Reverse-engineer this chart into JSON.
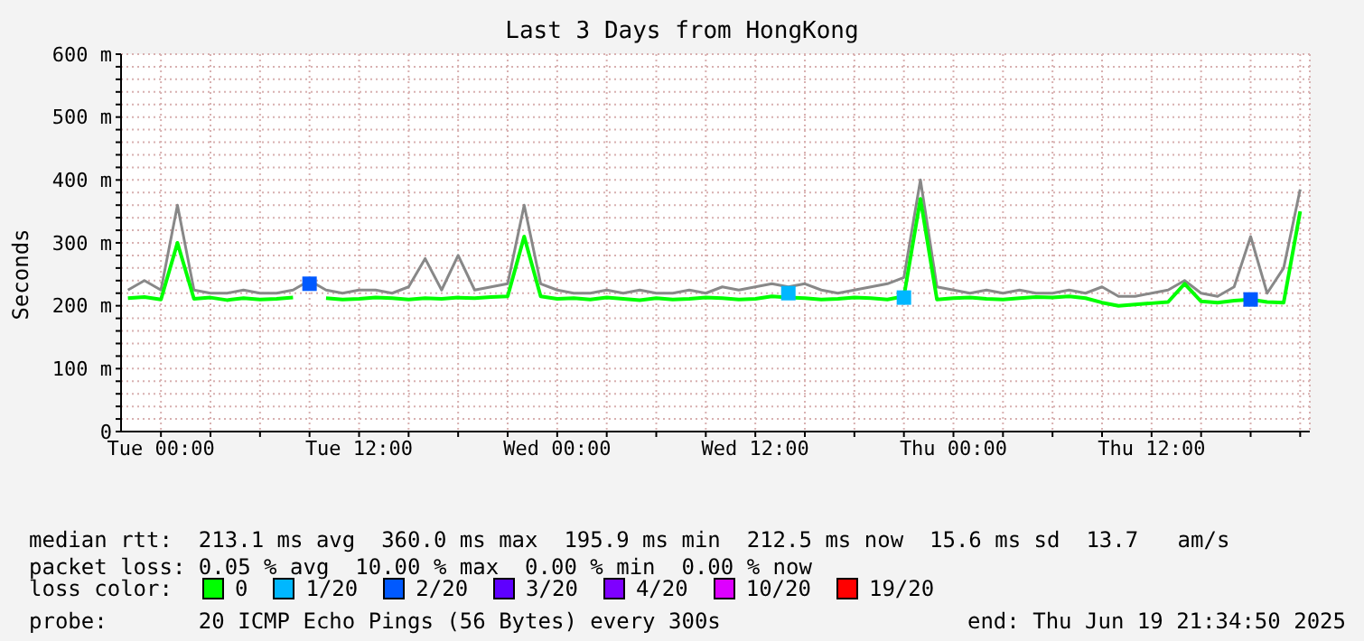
{
  "chart_data": {
    "type": "line",
    "title": "Last 3 Days from HongKong",
    "ylabel": "Seconds",
    "xlim": [
      "2025-06-16T21:35",
      "2025-06-19T21:35"
    ],
    "xticks": [
      {
        "value": "2025-06-17T00:00",
        "label": "Tue 00:00"
      },
      {
        "value": "2025-06-17T03:00",
        "label": null
      },
      {
        "value": "2025-06-17T06:00",
        "label": null
      },
      {
        "value": "2025-06-17T09:00",
        "label": null
      },
      {
        "value": "2025-06-17T12:00",
        "label": "Tue 12:00"
      },
      {
        "value": "2025-06-17T15:00",
        "label": null
      },
      {
        "value": "2025-06-17T18:00",
        "label": null
      },
      {
        "value": "2025-06-17T21:00",
        "label": null
      },
      {
        "value": "2025-06-18T00:00",
        "label": "Wed 00:00"
      },
      {
        "value": "2025-06-18T03:00",
        "label": null
      },
      {
        "value": "2025-06-18T06:00",
        "label": null
      },
      {
        "value": "2025-06-18T09:00",
        "label": null
      },
      {
        "value": "2025-06-18T12:00",
        "label": "Wed 12:00"
      },
      {
        "value": "2025-06-18T15:00",
        "label": null
      },
      {
        "value": "2025-06-18T18:00",
        "label": null
      },
      {
        "value": "2025-06-18T21:00",
        "label": null
      },
      {
        "value": "2025-06-19T00:00",
        "label": "Thu 00:00"
      },
      {
        "value": "2025-06-19T03:00",
        "label": null
      },
      {
        "value": "2025-06-19T06:00",
        "label": null
      },
      {
        "value": "2025-06-19T09:00",
        "label": null
      },
      {
        "value": "2025-06-19T12:00",
        "label": "Thu 12:00"
      },
      {
        "value": "2025-06-19T15:00",
        "label": null
      },
      {
        "value": "2025-06-19T18:00",
        "label": null
      },
      {
        "value": "2025-06-19T21:00",
        "label": null
      }
    ],
    "ylim": [
      0,
      600
    ],
    "yticks": [
      0,
      {
        "value": 20,
        "label": null
      },
      {
        "value": 40,
        "label": null
      },
      {
        "value": 60,
        "label": null
      },
      {
        "value": 80,
        "label": null
      },
      {
        "value": 100,
        "label": "100 m"
      },
      {
        "value": 120,
        "label": null
      },
      {
        "value": 140,
        "label": null
      },
      {
        "value": 160,
        "label": null
      },
      {
        "value": 180,
        "label": null
      },
      {
        "value": 200,
        "label": "200 m"
      },
      {
        "value": 220,
        "label": null
      },
      {
        "value": 240,
        "label": null
      },
      {
        "value": 260,
        "label": null
      },
      {
        "value": 280,
        "label": null
      },
      {
        "value": 300,
        "label": "300 m"
      },
      {
        "value": 320,
        "label": null
      },
      {
        "value": 340,
        "label": null
      },
      {
        "value": 360,
        "label": null
      },
      {
        "value": 380,
        "label": null
      },
      {
        "value": 400,
        "label": "400 m"
      },
      {
        "value": 420,
        "label": null
      },
      {
        "value": 440,
        "label": null
      },
      {
        "value": 460,
        "label": null
      },
      {
        "value": 480,
        "label": null
      },
      {
        "value": 500,
        "label": "500 m"
      },
      {
        "value": 520,
        "label": null
      },
      {
        "value": 540,
        "label": null
      },
      {
        "value": 560,
        "label": null
      },
      {
        "value": 580,
        "label": null
      },
      {
        "value": 600,
        "label": "600 m"
      }
    ],
    "x": [
      "2025-06-16T22:00",
      "2025-06-16T23:00",
      "2025-06-17T00:00",
      "2025-06-17T01:00",
      "2025-06-17T02:00",
      "2025-06-17T03:00",
      "2025-06-17T04:00",
      "2025-06-17T05:00",
      "2025-06-17T06:00",
      "2025-06-17T07:00",
      "2025-06-17T08:00",
      "2025-06-17T09:00",
      "2025-06-17T10:00",
      "2025-06-17T11:00",
      "2025-06-17T12:00",
      "2025-06-17T13:00",
      "2025-06-17T14:00",
      "2025-06-17T15:00",
      "2025-06-17T16:00",
      "2025-06-17T17:00",
      "2025-06-17T18:00",
      "2025-06-17T19:00",
      "2025-06-17T20:00",
      "2025-06-17T21:00",
      "2025-06-17T22:00",
      "2025-06-17T23:00",
      "2025-06-18T00:00",
      "2025-06-18T01:00",
      "2025-06-18T02:00",
      "2025-06-18T03:00",
      "2025-06-18T04:00",
      "2025-06-18T05:00",
      "2025-06-18T06:00",
      "2025-06-18T07:00",
      "2025-06-18T08:00",
      "2025-06-18T09:00",
      "2025-06-18T10:00",
      "2025-06-18T11:00",
      "2025-06-18T12:00",
      "2025-06-18T13:00",
      "2025-06-18T14:00",
      "2025-06-18T15:00",
      "2025-06-18T16:00",
      "2025-06-18T17:00",
      "2025-06-18T18:00",
      "2025-06-18T19:00",
      "2025-06-18T20:00",
      "2025-06-18T21:00",
      "2025-06-18T22:00",
      "2025-06-18T23:00",
      "2025-06-19T00:00",
      "2025-06-19T01:00",
      "2025-06-19T02:00",
      "2025-06-19T03:00",
      "2025-06-19T04:00",
      "2025-06-19T05:00",
      "2025-06-19T06:00",
      "2025-06-19T07:00",
      "2025-06-19T08:00",
      "2025-06-19T09:00",
      "2025-06-19T10:00",
      "2025-06-19T11:00",
      "2025-06-19T12:00",
      "2025-06-19T13:00",
      "2025-06-19T14:00",
      "2025-06-19T15:00",
      "2025-06-19T16:00",
      "2025-06-19T17:00",
      "2025-06-19T18:00",
      "2025-06-19T19:00",
      "2025-06-19T20:00",
      "2025-06-19T21:00"
    ],
    "series": [
      {
        "color": "#888888",
        "values": [
          225,
          240,
          225,
          360,
          225,
          220,
          220,
          225,
          220,
          220,
          225,
          240,
          225,
          220,
          225,
          225,
          220,
          230,
          275,
          225,
          280,
          225,
          230,
          235,
          360,
          235,
          225,
          220,
          220,
          225,
          220,
          225,
          220,
          220,
          225,
          220,
          230,
          225,
          230,
          235,
          230,
          235,
          225,
          220,
          225,
          230,
          235,
          245,
          400,
          230,
          225,
          220,
          225,
          220,
          225,
          220,
          220,
          225,
          220,
          230,
          215,
          215,
          220,
          225,
          240,
          220,
          215,
          230,
          310,
          220,
          260,
          385
        ]
      },
      {
        "name": "0",
        "color": "#00ff00",
        "values": [
          212,
          214,
          210,
          300,
          211,
          213,
          209,
          212,
          210,
          211,
          213,
          null,
          212,
          210,
          211,
          213,
          212,
          210,
          212,
          211,
          213,
          212,
          214,
          215,
          310,
          215,
          211,
          212,
          210,
          213,
          211,
          209,
          212,
          210,
          211,
          213,
          212,
          210,
          211,
          215,
          213,
          212,
          210,
          211,
          213,
          212,
          210,
          215,
          370,
          210,
          212,
          213,
          211,
          210,
          212,
          214,
          213,
          215,
          212,
          205,
          200,
          202,
          204,
          206,
          235,
          207,
          205,
          208,
          210,
          206,
          205,
          350
        ]
      },
      {
        "name": "1/20",
        "color": "#00b7ff",
        "type": "scatter",
        "marker": "square",
        "values": [
          null,
          null,
          null,
          null,
          null,
          null,
          null,
          null,
          null,
          null,
          null,
          null,
          null,
          null,
          null,
          null,
          null,
          null,
          null,
          null,
          null,
          null,
          null,
          null,
          null,
          null,
          null,
          null,
          null,
          null,
          null,
          null,
          null,
          null,
          null,
          null,
          null,
          null,
          null,
          null,
          220,
          null,
          null,
          null,
          null,
          null,
          null,
          213,
          null,
          null,
          null,
          null,
          null,
          null,
          null,
          null,
          null,
          null,
          null,
          null,
          null,
          null,
          null,
          null,
          null,
          null,
          null,
          null,
          null,
          null,
          null,
          null
        ]
      },
      {
        "name": "2/20",
        "color": "#0059ff",
        "type": "scatter",
        "marker": "square",
        "values": [
          null,
          null,
          null,
          null,
          null,
          null,
          null,
          null,
          null,
          null,
          null,
          235,
          null,
          null,
          null,
          null,
          null,
          null,
          null,
          null,
          null,
          null,
          null,
          null,
          null,
          null,
          null,
          null,
          null,
          null,
          null,
          null,
          null,
          null,
          null,
          null,
          null,
          null,
          null,
          null,
          null,
          null,
          null,
          null,
          null,
          null,
          null,
          null,
          null,
          null,
          null,
          null,
          null,
          null,
          null,
          null,
          null,
          null,
          null,
          null,
          null,
          null,
          null,
          null,
          null,
          null,
          null,
          null,
          210,
          null,
          null,
          null
        ]
      },
      {
        "name": "3/20",
        "color": "#5e00ff",
        "type": "scatter",
        "marker": "square",
        "values": [
          null,
          null,
          null,
          null,
          null,
          null,
          null,
          null,
          null,
          null,
          null,
          null,
          null,
          null,
          null,
          null,
          null,
          null,
          null,
          null,
          null,
          null,
          null,
          null,
          null,
          null,
          null,
          null,
          null,
          null,
          null,
          null,
          null,
          null,
          null,
          null,
          null,
          null,
          null,
          null,
          null,
          null,
          null,
          null,
          null,
          null,
          null,
          null,
          null,
          null,
          null,
          null,
          null,
          null,
          null,
          null,
          null,
          null,
          null,
          null,
          null,
          null,
          null,
          null,
          null,
          null,
          null,
          null,
          null,
          null,
          null,
          null
        ]
      },
      {
        "name": "4/20",
        "color": "#7e00ff",
        "type": "scatter",
        "marker": "square",
        "values": [
          null,
          null,
          null,
          null,
          null,
          null,
          null,
          null,
          null,
          null,
          null,
          null,
          null,
          null,
          null,
          null,
          null,
          null,
          null,
          null,
          null,
          null,
          null,
          null,
          null,
          null,
          null,
          null,
          null,
          null,
          null,
          null,
          null,
          null,
          null,
          null,
          null,
          null,
          null,
          null,
          null,
          null,
          null,
          null,
          null,
          null,
          null,
          null,
          null,
          null,
          null,
          null,
          null,
          null,
          null,
          null,
          null,
          null,
          null,
          null,
          null,
          null,
          null,
          null,
          null,
          null,
          null,
          null,
          null,
          null,
          null,
          null
        ]
      },
      {
        "name": "10/20",
        "color": "#dd00ff",
        "type": "scatter",
        "marker": "square",
        "values": [
          null,
          null,
          null,
          null,
          null,
          null,
          null,
          null,
          null,
          null,
          null,
          null,
          null,
          null,
          null,
          null,
          null,
          null,
          null,
          null,
          null,
          null,
          null,
          null,
          null,
          null,
          null,
          null,
          null,
          null,
          null,
          null,
          null,
          null,
          null,
          null,
          null,
          null,
          null,
          null,
          null,
          null,
          null,
          null,
          null,
          null,
          null,
          null,
          null,
          null,
          null,
          null,
          null,
          null,
          null,
          null,
          null,
          null,
          null,
          null,
          null,
          null,
          null,
          null,
          null,
          null,
          null,
          null,
          null,
          null,
          null,
          null
        ]
      },
      {
        "name": "19/20",
        "color": "#ff0000",
        "type": "scatter",
        "marker": "square",
        "values": [
          null,
          null,
          null,
          null,
          null,
          null,
          null,
          null,
          null,
          null,
          null,
          null,
          null,
          null,
          null,
          null,
          null,
          null,
          null,
          null,
          null,
          null,
          null,
          null,
          null,
          null,
          null,
          null,
          null,
          null,
          null,
          null,
          null,
          null,
          null,
          null,
          null,
          null,
          null,
          null,
          null,
          null,
          null,
          null,
          null,
          null,
          null,
          null,
          null,
          null,
          null,
          null,
          null,
          null,
          null,
          null,
          null,
          null,
          null,
          null,
          null,
          null,
          null,
          null,
          null,
          null,
          null,
          null,
          null,
          null,
          null,
          null
        ]
      }
    ],
    "grid": true,
    "legend": "bottom",
    "line_style": "solid",
    "annotations": [
      "median rtt:  213.1 ms avg  360.0 ms max  195.9 ms min  212.5 ms now  15.6 ms sd  13.7   am/s",
      "packet loss: 0.05 % avg  10.00 % max  0.00 % min  0.00 % now",
      "loss color:",
      "probe:       20 ICMP Echo Pings (56 Bytes) every 300s",
      "end: Thu Jun 19 21:34:50 2025"
    ]
  }
}
